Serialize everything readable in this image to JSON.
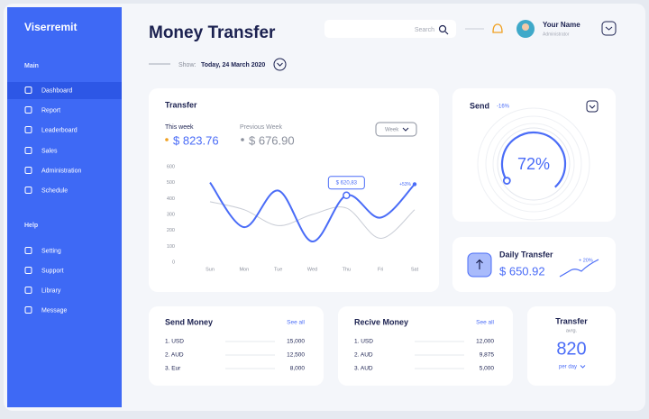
{
  "sidebar": {
    "brand": "Viserremit",
    "sections": [
      {
        "title": "Main",
        "items": [
          "Dashboard",
          "Report",
          "Leaderboard",
          "Sales",
          "Administration",
          "Schedule"
        ]
      },
      {
        "title": "Help",
        "items": [
          "Setting",
          "Support",
          "Library",
          "Message"
        ]
      }
    ]
  },
  "header": {
    "title": "Money Transfer",
    "search": "Search",
    "user": {
      "name": "Your Name",
      "role": "Administrator"
    },
    "show_label": "Show:",
    "date": "Today, 24 March 2020"
  },
  "transfer": {
    "title": "Transfer",
    "this_week_label": "This week",
    "this_week": "$ 823.76",
    "previous_week_label": "Previous Week",
    "previous_week": "$ 676.90",
    "period": "Week",
    "tooltip": "$ 620,83",
    "change": "+53%"
  },
  "chart_data": {
    "type": "line",
    "categories": [
      "Sun",
      "Mon",
      "Tue",
      "Wed",
      "Thu",
      "Fri",
      "Sat"
    ],
    "series": [
      {
        "color": "#c9cdd6",
        "values": [
          380,
          330,
          230,
          300,
          340,
          150,
          330
        ]
      },
      {
        "color": "#4a6cf7",
        "values": [
          500,
          220,
          450,
          130,
          420,
          280,
          490
        ]
      }
    ],
    "ylim": [
      0,
      600
    ],
    "yticks": [
      0,
      100,
      200,
      300,
      400,
      500,
      600
    ]
  },
  "send": {
    "title": "Send",
    "change": "-16%",
    "gauge": {
      "value": 72,
      "label": "72%"
    }
  },
  "daily_transfer": {
    "title": "Daily Transfer",
    "value": "$ 650.92",
    "change": "+ 20%"
  },
  "send_money": {
    "title": "Send Money",
    "see_all": "See all",
    "rows": [
      [
        "1. USD",
        "15,000"
      ],
      [
        "2. AUD",
        "12,500"
      ],
      [
        "3. Eur",
        "8,000"
      ]
    ]
  },
  "recive_money": {
    "title": "Recive Money",
    "see_all": "See all",
    "rows": [
      [
        "1. USD",
        "12,000"
      ],
      [
        "2. AUD",
        "9,875"
      ],
      [
        "3. AUD",
        "5,000"
      ]
    ]
  },
  "transfer_avg": {
    "title": "Transfer",
    "subtitle": "avrg.",
    "value": "820",
    "period": "per day"
  }
}
